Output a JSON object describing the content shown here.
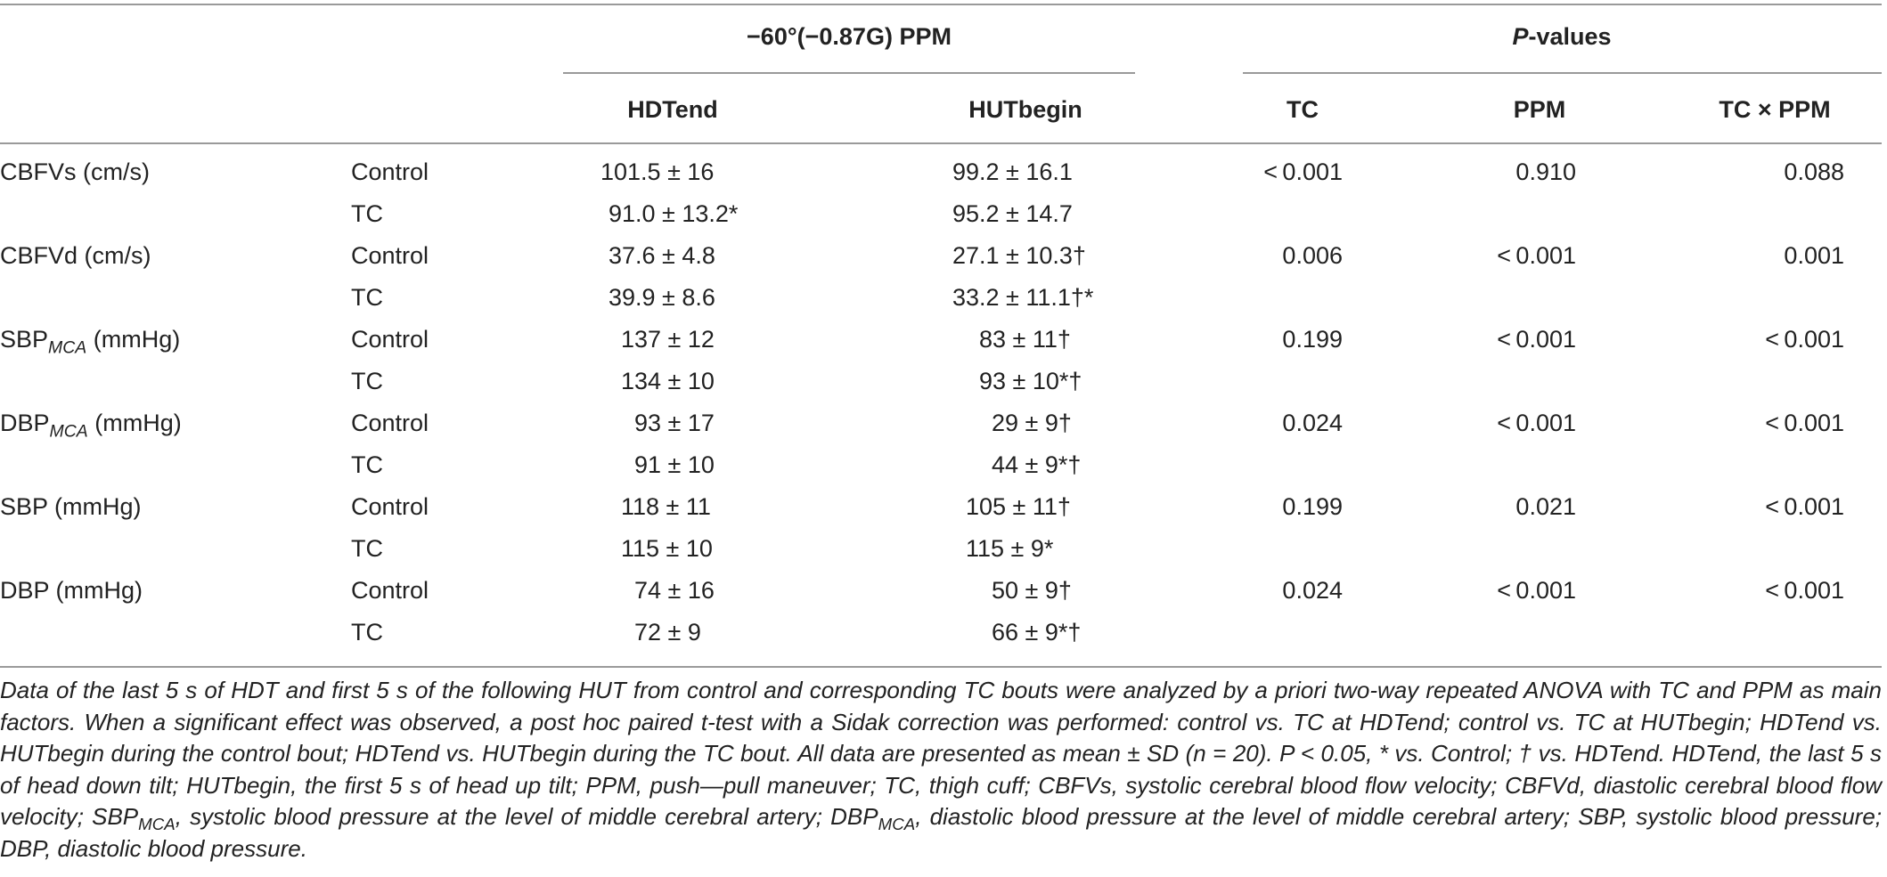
{
  "table": {
    "group_headers": {
      "ppm": "−60°(−0.87G) PPM",
      "pvalues_italic": "P",
      "pvalues_rest": "-values"
    },
    "col_headers": {
      "hdtend": "HDTend",
      "hutbegin": "HUTbegin",
      "tc": "TC",
      "ppm": "PPM",
      "tcxppm": "TC × PPM"
    },
    "rows": [
      {
        "measure": "CBFVs (cm/s)",
        "condition": "Control",
        "hdtend": "101.5 ± 16",
        "hutbegin": "99.2 ± 16.1",
        "p_tc": "< 0.001",
        "p_ppm": "0.910",
        "p_tcxppm": "0.088"
      },
      {
        "condition": "TC",
        "hdtend": "91.0 ± 13.2*",
        "hutbegin": "95.2 ± 14.7"
      },
      {
        "measure": "CBFVd (cm/s)",
        "condition": "Control",
        "hdtend": "37.6 ± 4.8",
        "hutbegin": "27.1 ± 10.3†",
        "p_tc": "0.006",
        "p_ppm": "< 0.001",
        "p_tcxppm": "0.001"
      },
      {
        "condition": "TC",
        "hdtend": "39.9 ± 8.6",
        "hutbegin": "33.2 ± 11.1†*"
      },
      {
        "measure_base": "SBP",
        "measure_sub": "MCA",
        "measure_unit": " (mmHg)",
        "condition": "Control",
        "hdtend": "137 ± 12",
        "hutbegin": "83 ± 11†",
        "p_tc": "0.199",
        "p_ppm": "< 0.001",
        "p_tcxppm": "< 0.001"
      },
      {
        "condition": "TC",
        "hdtend": "134 ± 10",
        "hutbegin": "93 ± 10*†"
      },
      {
        "measure_base": "DBP",
        "measure_sub": "MCA",
        "measure_unit": " (mmHg)",
        "condition": "Control",
        "hdtend": "93 ± 17",
        "hutbegin": "29 ± 9†",
        "p_tc": "0.024",
        "p_ppm": "< 0.001",
        "p_tcxppm": "< 0.001"
      },
      {
        "condition": "TC",
        "hdtend": "91 ± 10",
        "hutbegin": "44 ± 9*†"
      },
      {
        "measure": "SBP (mmHg)",
        "condition": "Control",
        "hdtend": "118 ± 11",
        "hutbegin": "105 ± 11†",
        "p_tc": "0.199",
        "p_ppm": "0.021",
        "p_tcxppm": "< 0.001"
      },
      {
        "condition": "TC",
        "hdtend": "115 ± 10",
        "hutbegin": "115 ± 9*"
      },
      {
        "measure": "DBP (mmHg)",
        "condition": "Control",
        "hdtend": "74 ± 16",
        "hutbegin": "50 ± 9†",
        "p_tc": "0.024",
        "p_ppm": "< 0.001",
        "p_tcxppm": "< 0.001"
      },
      {
        "condition": "TC",
        "hdtend": "72 ± 9",
        "hutbegin": "66 ± 9*†"
      }
    ]
  },
  "footnote": {
    "part1": "Data of the last 5 s of HDT and first 5 s of the following HUT from control and corresponding TC bouts were analyzed by a priori two-way repeated ANOVA with TC and PPM as main factors. When a significant effect was observed, a post hoc paired t-test with a Sidak correction was performed: control vs. TC at HDTend; control vs. TC at HUTbegin; HDTend vs. HUTbegin during the control bout; HDTend vs. HUTbegin during the TC bout. All data are presented as mean ± SD (n = 20). P < 0.05, * vs. Control; † vs. HDTend. HDTend, the last 5 s of head down tilt; HUTbegin, the first 5 s of head up tilt; PPM, push—pull maneuver; TC, thigh cuff; CBFVs, systolic cerebral blood flow velocity; CBFVd, diastolic cerebral blood flow velocity; SBP",
    "sub1": "MCA",
    "part2": ", systolic blood pressure at the level of middle cerebral artery; DBP",
    "sub2": "MCA",
    "part3": ", diastolic blood pressure at the level of middle cerebral artery; SBP, systolic blood pressure; DBP, diastolic blood pressure."
  }
}
